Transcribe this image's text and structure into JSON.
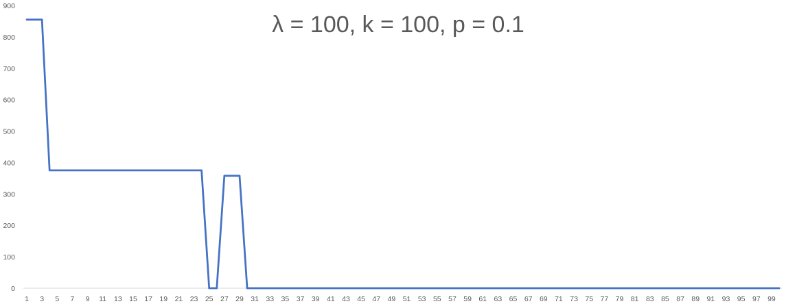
{
  "chart_data": {
    "type": "line",
    "title": "λ = 100, k = 100, p = 0.1",
    "xlabel": "",
    "ylabel": "",
    "ylim": [
      0,
      900
    ],
    "yticks": [
      0,
      100,
      200,
      300,
      400,
      500,
      600,
      700,
      800,
      900
    ],
    "xlim": [
      1,
      100
    ],
    "xtick_labels": [
      1,
      3,
      5,
      7,
      9,
      11,
      13,
      15,
      17,
      19,
      21,
      23,
      25,
      27,
      29,
      31,
      33,
      35,
      37,
      39,
      41,
      43,
      45,
      47,
      49,
      51,
      53,
      55,
      57,
      59,
      61,
      63,
      65,
      67,
      69,
      71,
      73,
      75,
      77,
      79,
      81,
      83,
      85,
      87,
      89,
      91,
      93,
      95,
      97,
      99
    ],
    "grid": false,
    "legend": "none",
    "colors": {
      "line": "#4472C4",
      "axis": "#D9D9D9",
      "text": "#595959"
    },
    "series": [
      {
        "x": [
          1,
          2,
          3,
          4,
          5,
          6,
          7,
          8,
          9,
          10,
          11,
          12,
          13,
          14,
          15,
          16,
          17,
          18,
          19,
          20,
          21,
          22,
          23,
          24,
          25,
          26,
          27,
          28,
          29,
          30,
          31,
          32,
          33,
          34,
          35,
          36,
          37,
          38,
          39,
          40,
          41,
          42,
          43,
          44,
          45,
          46,
          47,
          48,
          49,
          50,
          51,
          52,
          53,
          54,
          55,
          56,
          57,
          58,
          59,
          60,
          61,
          62,
          63,
          64,
          65,
          66,
          67,
          68,
          69,
          70,
          71,
          72,
          73,
          74,
          75,
          76,
          77,
          78,
          79,
          80,
          81,
          82,
          83,
          84,
          85,
          86,
          87,
          88,
          89,
          90,
          91,
          92,
          93,
          94,
          95,
          96,
          97,
          98,
          99,
          100
        ],
        "values": [
          855,
          855,
          855,
          375,
          375,
          375,
          375,
          375,
          375,
          375,
          375,
          375,
          375,
          375,
          375,
          375,
          375,
          375,
          375,
          375,
          375,
          375,
          375,
          375,
          0,
          0,
          358,
          358,
          358,
          0,
          0,
          0,
          0,
          0,
          0,
          0,
          0,
          0,
          0,
          0,
          0,
          0,
          0,
          0,
          0,
          0,
          0,
          0,
          0,
          0,
          0,
          0,
          0,
          0,
          0,
          0,
          0,
          0,
          0,
          0,
          0,
          0,
          0,
          0,
          0,
          0,
          0,
          0,
          0,
          0,
          0,
          0,
          0,
          0,
          0,
          0,
          0,
          0,
          0,
          0,
          0,
          0,
          0,
          0,
          0,
          0,
          0,
          0,
          0,
          0,
          0,
          0,
          0,
          0,
          0,
          0,
          0,
          0,
          0,
          0
        ]
      }
    ]
  }
}
